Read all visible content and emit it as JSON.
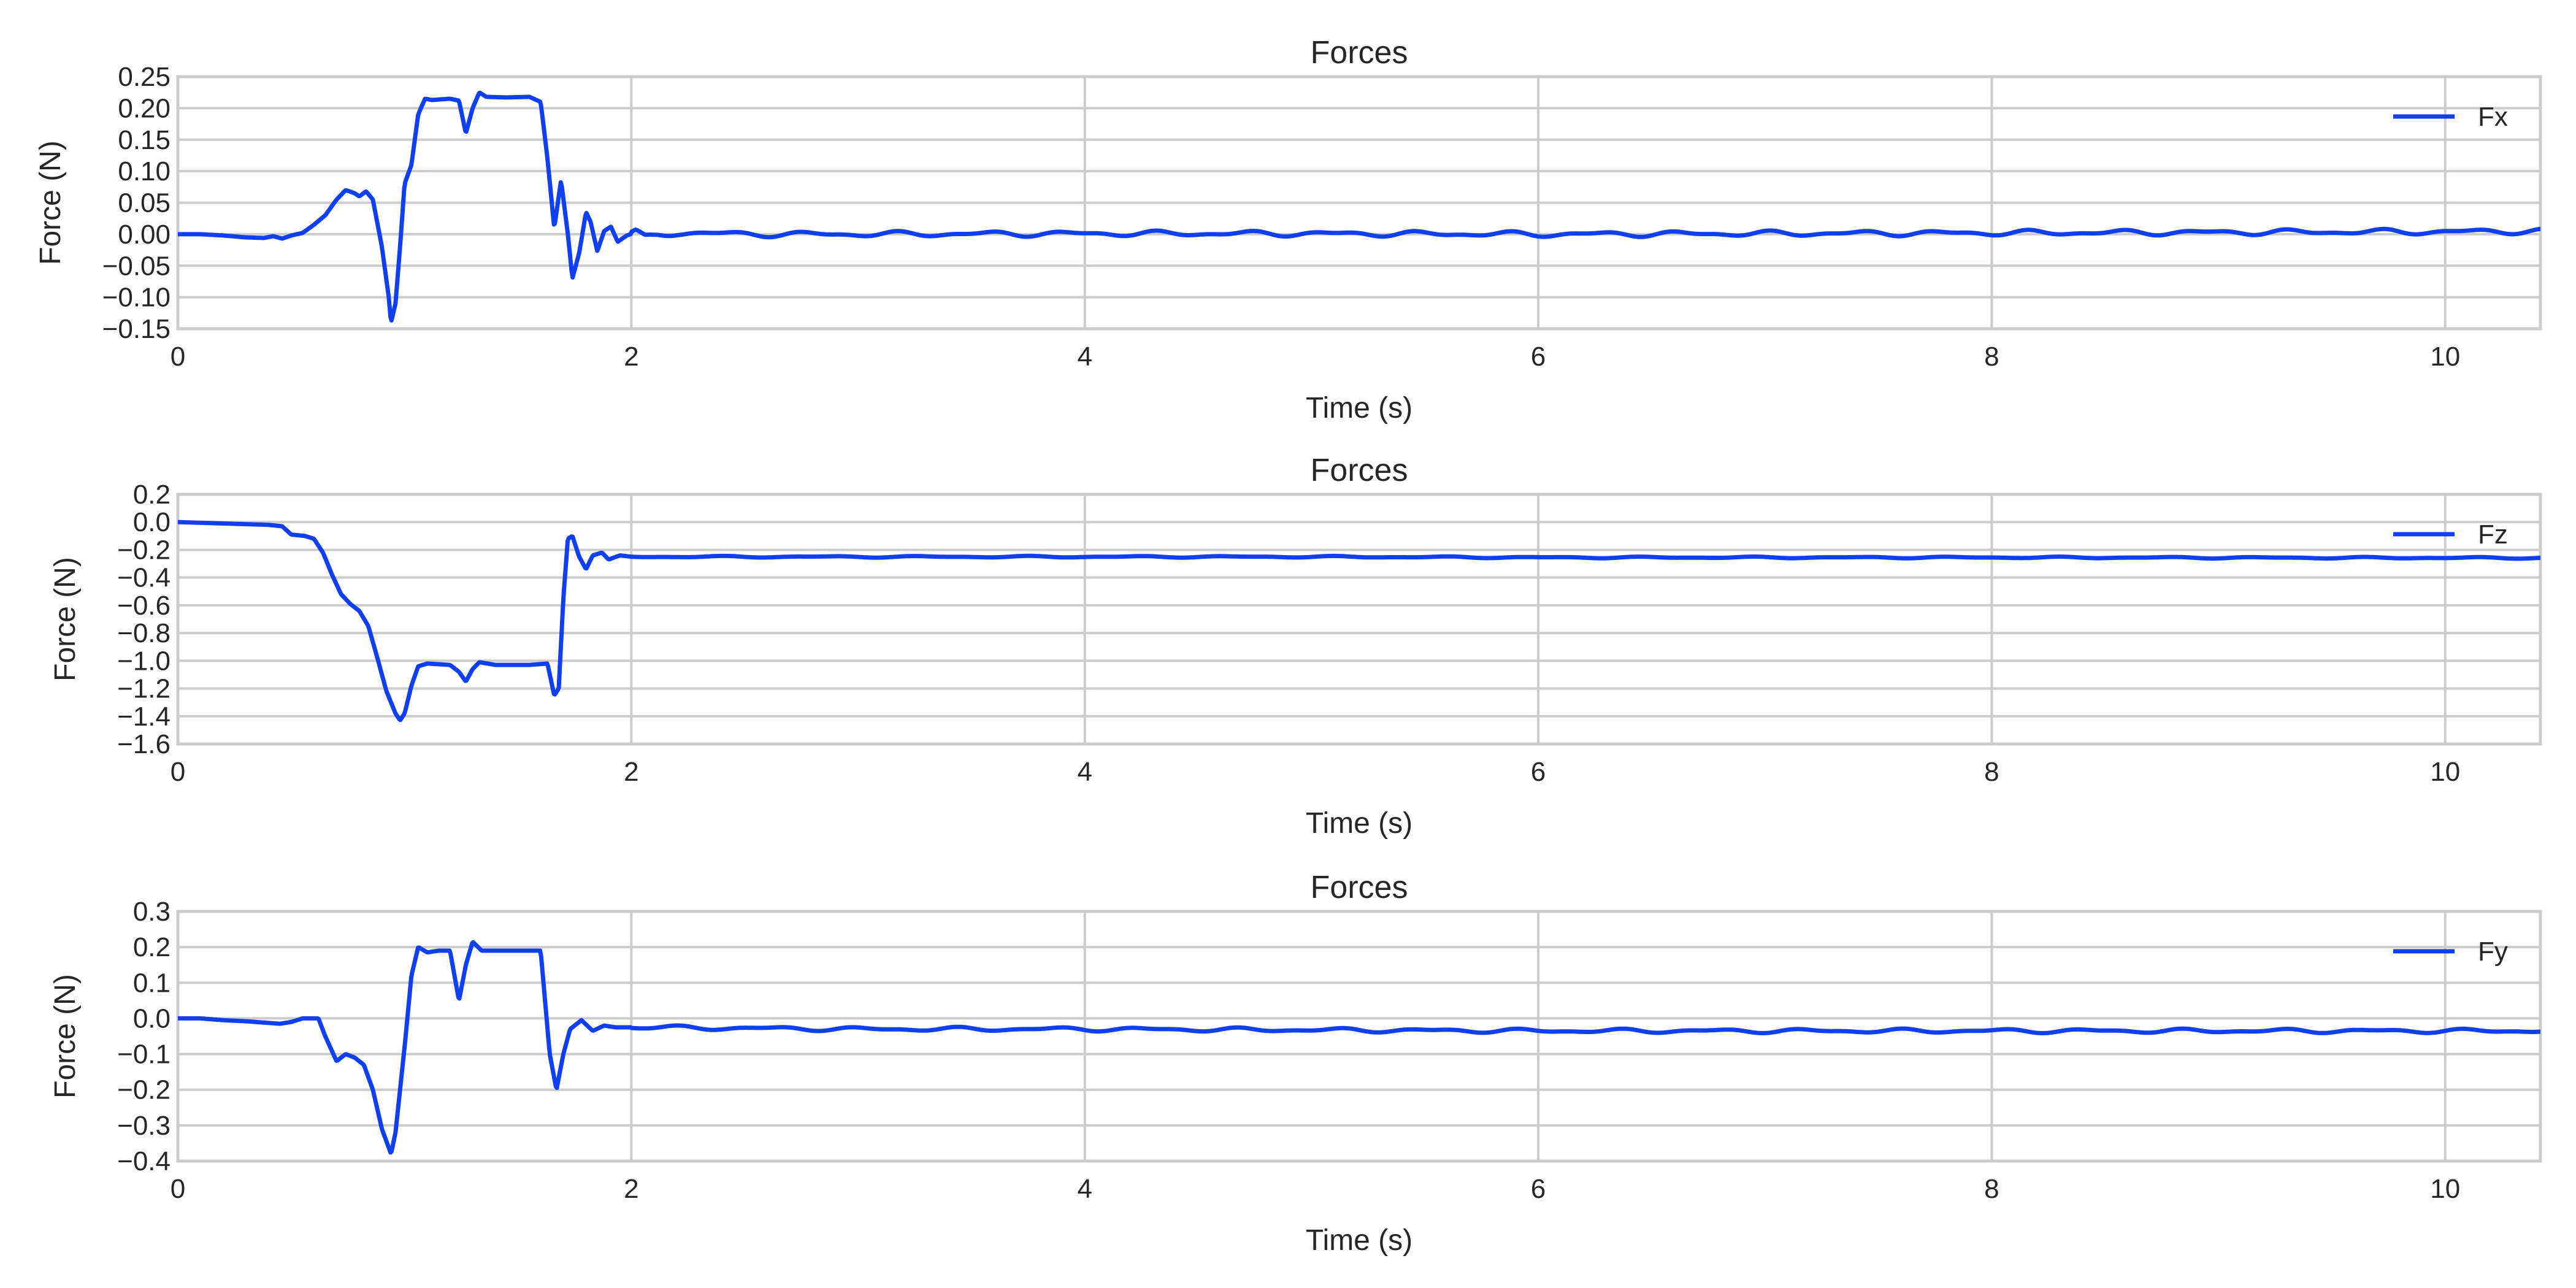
{
  "colors": {
    "series": "#0f3ff5",
    "grid": "#cccccc",
    "text": "#262626"
  },
  "chart_data": [
    {
      "type": "line",
      "title": "Forces",
      "xlabel": "Time (s)",
      "ylabel": "Force (N)",
      "xlim": [
        0,
        10.42
      ],
      "ylim": [
        -0.15,
        0.25
      ],
      "xticks": [
        0,
        2,
        4,
        6,
        8,
        10
      ],
      "xtick_labels": [
        "0",
        "2",
        "4",
        "6",
        "8",
        "10"
      ],
      "yticks": [
        -0.15,
        -0.1,
        -0.05,
        0,
        0.05,
        0.1,
        0.15,
        0.2,
        0.25
      ],
      "ytick_labels": [
        "−0.15",
        "−0.10",
        "−0.05",
        "0.00",
        "0.05",
        "0.10",
        "0.15",
        "0.20",
        "0.25"
      ],
      "grid": true,
      "legend": "top-right",
      "series": [
        {
          "name": "Fx",
          "color": "#0f3ff5",
          "noise": {
            "amp": 0.003,
            "freq": 2.6
          },
          "points": [
            [
              0,
              0
            ],
            [
              0.1,
              0
            ],
            [
              0.2,
              -0.002
            ],
            [
              0.3,
              -0.005
            ],
            [
              0.38,
              -0.006
            ],
            [
              0.42,
              -0.003
            ],
            [
              0.46,
              -0.007
            ],
            [
              0.5,
              -0.002
            ],
            [
              0.55,
              0.002
            ],
            [
              0.6,
              0.015
            ],
            [
              0.65,
              0.03
            ],
            [
              0.7,
              0.055
            ],
            [
              0.74,
              0.07
            ],
            [
              0.78,
              0.065
            ],
            [
              0.8,
              0.06
            ],
            [
              0.83,
              0.068
            ],
            [
              0.86,
              0.055
            ],
            [
              0.9,
              -0.02
            ],
            [
              0.93,
              -0.1
            ],
            [
              0.94,
              -0.14
            ],
            [
              0.96,
              -0.11
            ],
            [
              0.98,
              -0.02
            ],
            [
              1.0,
              0.08
            ],
            [
              1.03,
              0.11
            ],
            [
              1.06,
              0.19
            ],
            [
              1.09,
              0.215
            ],
            [
              1.12,
              0.213
            ],
            [
              1.16,
              0.214
            ],
            [
              1.2,
              0.215
            ],
            [
              1.24,
              0.212
            ],
            [
              1.27,
              0.16
            ],
            [
              1.3,
              0.2
            ],
            [
              1.33,
              0.225
            ],
            [
              1.36,
              0.218
            ],
            [
              1.45,
              0.217
            ],
            [
              1.55,
              0.218
            ],
            [
              1.6,
              0.21
            ],
            [
              1.63,
              0.12
            ],
            [
              1.66,
              0.01
            ],
            [
              1.69,
              0.085
            ],
            [
              1.72,
              0.0
            ],
            [
              1.74,
              -0.07
            ],
            [
              1.77,
              -0.03
            ],
            [
              1.8,
              0.035
            ],
            [
              1.82,
              0.02
            ],
            [
              1.85,
              -0.027
            ],
            [
              1.88,
              0.005
            ],
            [
              1.91,
              0.012
            ],
            [
              1.94,
              -0.012
            ],
            [
              1.98,
              -0.002
            ],
            [
              2.02,
              0.003
            ],
            [
              2.06,
              -0.005
            ],
            [
              2.12,
              0.0
            ],
            [
              2.2,
              0.002
            ],
            [
              2.6,
              0.0
            ],
            [
              3.0,
              0.0
            ],
            [
              4.0,
              0.001
            ],
            [
              5.0,
              0.001
            ],
            [
              6.0,
              0.0
            ],
            [
              7.0,
              0.001
            ],
            [
              8.0,
              0.002
            ],
            [
              9.0,
              0.003
            ],
            [
              10.0,
              0.004
            ],
            [
              10.42,
              0.005
            ]
          ]
        }
      ]
    },
    {
      "type": "line",
      "title": "Forces",
      "xlabel": "Time (s)",
      "ylabel": "Force (N)",
      "xlim": [
        0,
        10.42
      ],
      "ylim": [
        -1.6,
        0.2
      ],
      "xticks": [
        0,
        2,
        4,
        6,
        8,
        10
      ],
      "xtick_labels": [
        "0",
        "2",
        "4",
        "6",
        "8",
        "10"
      ],
      "yticks": [
        -1.6,
        -1.4,
        -1.2,
        -1.0,
        -0.8,
        -0.6,
        -0.4,
        -0.2,
        0.0,
        0.2
      ],
      "ytick_labels": [
        "−1.6",
        "−1.4",
        "−1.2",
        "−1.0",
        "−0.8",
        "−0.6",
        "−0.4",
        "−0.2",
        "0.0",
        "0.2"
      ],
      "grid": true,
      "legend": "top-right",
      "series": [
        {
          "name": "Fz",
          "color": "#0f3ff5",
          "noise": {
            "amp": 0.004,
            "freq": 2.2
          },
          "points": [
            [
              0,
              0.0
            ],
            [
              0.2,
              -0.01
            ],
            [
              0.4,
              -0.02
            ],
            [
              0.46,
              -0.03
            ],
            [
              0.5,
              -0.09
            ],
            [
              0.56,
              -0.1
            ],
            [
              0.6,
              -0.12
            ],
            [
              0.64,
              -0.22
            ],
            [
              0.68,
              -0.38
            ],
            [
              0.72,
              -0.52
            ],
            [
              0.76,
              -0.59
            ],
            [
              0.8,
              -0.64
            ],
            [
              0.84,
              -0.75
            ],
            [
              0.88,
              -0.98
            ],
            [
              0.92,
              -1.22
            ],
            [
              0.96,
              -1.38
            ],
            [
              0.98,
              -1.43
            ],
            [
              1.0,
              -1.38
            ],
            [
              1.03,
              -1.18
            ],
            [
              1.06,
              -1.04
            ],
            [
              1.1,
              -1.02
            ],
            [
              1.2,
              -1.03
            ],
            [
              1.24,
              -1.08
            ],
            [
              1.27,
              -1.15
            ],
            [
              1.3,
              -1.06
            ],
            [
              1.33,
              -1.01
            ],
            [
              1.4,
              -1.03
            ],
            [
              1.55,
              -1.03
            ],
            [
              1.63,
              -1.02
            ],
            [
              1.66,
              -1.25
            ],
            [
              1.68,
              -1.2
            ],
            [
              1.7,
              -0.55
            ],
            [
              1.72,
              -0.12
            ],
            [
              1.74,
              -0.1
            ],
            [
              1.77,
              -0.25
            ],
            [
              1.8,
              -0.34
            ],
            [
              1.83,
              -0.24
            ],
            [
              1.87,
              -0.22
            ],
            [
              1.9,
              -0.27
            ],
            [
              1.95,
              -0.24
            ],
            [
              2.0,
              -0.25
            ],
            [
              2.5,
              -0.25
            ],
            [
              3.0,
              -0.25
            ],
            [
              4.0,
              -0.25
            ],
            [
              5.0,
              -0.25
            ],
            [
              6.0,
              -0.255
            ],
            [
              8.0,
              -0.255
            ],
            [
              10.0,
              -0.258
            ],
            [
              10.42,
              -0.258
            ]
          ]
        }
      ]
    },
    {
      "type": "line",
      "title": "Forces",
      "xlabel": "Time (s)",
      "ylabel": "Force (N)",
      "xlim": [
        0,
        10.42
      ],
      "ylim": [
        -0.4,
        0.3
      ],
      "xticks": [
        0,
        2,
        4,
        6,
        8,
        10
      ],
      "xtick_labels": [
        "0",
        "2",
        "4",
        "6",
        "8",
        "10"
      ],
      "yticks": [
        -0.4,
        -0.3,
        -0.2,
        -0.1,
        0.0,
        0.1,
        0.2,
        0.3
      ],
      "ytick_labels": [
        "−0.4",
        "−0.3",
        "−0.2",
        "−0.1",
        "0.0",
        "0.1",
        "0.2",
        "0.3"
      ],
      "grid": true,
      "legend": "top-right",
      "series": [
        {
          "name": "Fy",
          "color": "#0f3ff5",
          "noise": {
            "amp": 0.004,
            "freq": 2.4
          },
          "points": [
            [
              0,
              0.0
            ],
            [
              0.1,
              0.0
            ],
            [
              0.2,
              -0.005
            ],
            [
              0.3,
              -0.008
            ],
            [
              0.45,
              -0.015
            ],
            [
              0.5,
              -0.01
            ],
            [
              0.55,
              0.0
            ],
            [
              0.62,
              0.0
            ],
            [
              0.65,
              -0.05
            ],
            [
              0.7,
              -0.12
            ],
            [
              0.74,
              -0.1
            ],
            [
              0.78,
              -0.11
            ],
            [
              0.82,
              -0.13
            ],
            [
              0.86,
              -0.2
            ],
            [
              0.9,
              -0.31
            ],
            [
              0.94,
              -0.38
            ],
            [
              0.96,
              -0.32
            ],
            [
              1.0,
              -0.08
            ],
            [
              1.03,
              0.12
            ],
            [
              1.06,
              0.2
            ],
            [
              1.1,
              0.185
            ],
            [
              1.15,
              0.19
            ],
            [
              1.2,
              0.19
            ],
            [
              1.24,
              0.05
            ],
            [
              1.27,
              0.15
            ],
            [
              1.3,
              0.215
            ],
            [
              1.34,
              0.19
            ],
            [
              1.4,
              0.19
            ],
            [
              1.5,
              0.19
            ],
            [
              1.6,
              0.19
            ],
            [
              1.64,
              -0.1
            ],
            [
              1.67,
              -0.2
            ],
            [
              1.7,
              -0.1
            ],
            [
              1.73,
              -0.03
            ],
            [
              1.78,
              -0.005
            ],
            [
              1.83,
              -0.035
            ],
            [
              1.88,
              -0.02
            ],
            [
              1.93,
              -0.025
            ],
            [
              2.0,
              -0.025
            ],
            [
              3.0,
              -0.03
            ],
            [
              4.0,
              -0.03
            ],
            [
              6.0,
              -0.035
            ],
            [
              8.0,
              -0.035
            ],
            [
              10.0,
              -0.035
            ],
            [
              10.42,
              -0.035
            ]
          ]
        }
      ]
    }
  ]
}
